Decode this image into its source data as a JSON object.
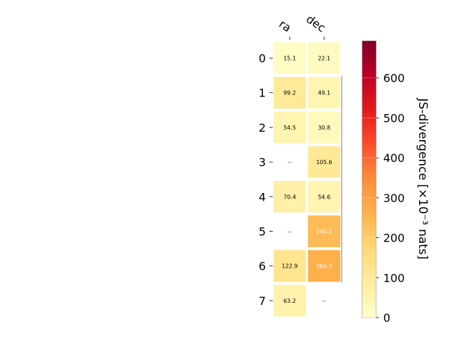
{
  "chart_data": {
    "type": "heatmap",
    "title": "",
    "columns": [
      "ra",
      "dec"
    ],
    "rows": [
      "0",
      "1",
      "2",
      "3",
      "4",
      "5",
      "6",
      "7"
    ],
    "values": [
      [
        15.1,
        22.1
      ],
      [
        99.2,
        49.1
      ],
      [
        54.5,
        30.8
      ],
      [
        null,
        105.6
      ],
      [
        70.4,
        54.6
      ],
      [
        null,
        240.1
      ],
      [
        122.9,
        264.3
      ],
      [
        63.2,
        null
      ]
    ],
    "cell_labels": [
      [
        "15.1",
        "22.1"
      ],
      [
        "99.2",
        "49.1"
      ],
      [
        "54.5",
        "30.8"
      ],
      [
        "--",
        "105.6"
      ],
      [
        "70.4",
        "54.6"
      ],
      [
        "--",
        "240.1"
      ],
      [
        "122.9",
        "264.3"
      ],
      [
        "63.2",
        "--"
      ]
    ],
    "colorbar": {
      "label": "JS-divergence [×10⁻³ nats]",
      "min": 0,
      "max": 693,
      "ticks": [
        0,
        100,
        200,
        300,
        400,
        500,
        600
      ],
      "tick_labels": [
        "0",
        "100",
        "200",
        "300",
        "400",
        "500",
        "600"
      ],
      "colormap": "YlOrRd"
    },
    "grid": false
  }
}
